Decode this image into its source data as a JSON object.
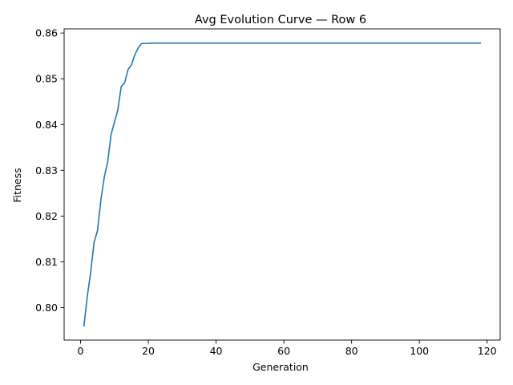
{
  "chart_data": {
    "type": "line",
    "title": "Avg Evolution Curve — Row 6",
    "xlabel": "Generation",
    "ylabel": "Fitness",
    "xlim": [
      -4.85,
      123.85
    ],
    "ylim": [
      0.7929,
      0.8609
    ],
    "xticks": [
      0,
      20,
      40,
      60,
      80,
      100,
      120
    ],
    "yticks": [
      0.8,
      0.81,
      0.82,
      0.83,
      0.84,
      0.85,
      0.86
    ],
    "xtick_labels": [
      "0",
      "20",
      "40",
      "60",
      "80",
      "100",
      "120"
    ],
    "ytick_labels": [
      "0.80",
      "0.81",
      "0.82",
      "0.83",
      "0.84",
      "0.85",
      "0.86"
    ],
    "grid": false,
    "line_color": "#1f77b4",
    "series": [
      {
        "x": [
          1,
          2,
          3,
          4,
          5,
          6,
          7,
          8,
          9,
          10,
          11,
          12,
          13,
          14,
          15,
          16,
          17,
          18,
          19,
          20,
          21,
          22,
          30,
          40,
          50,
          60,
          70,
          80,
          90,
          100,
          110,
          118
        ],
        "values": [
          0.796,
          0.8025,
          0.8078,
          0.8143,
          0.8168,
          0.8235,
          0.8285,
          0.8318,
          0.8378,
          0.8405,
          0.8432,
          0.8483,
          0.8491,
          0.852,
          0.853,
          0.8552,
          0.8567,
          0.8577,
          0.8577,
          0.8577,
          0.8578,
          0.8578,
          0.8578,
          0.8578,
          0.8578,
          0.8578,
          0.8578,
          0.8578,
          0.8578,
          0.8578,
          0.8578,
          0.8578
        ]
      }
    ]
  }
}
